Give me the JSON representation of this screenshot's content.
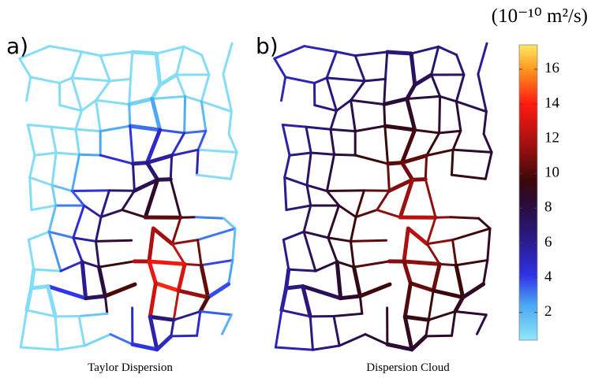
{
  "panels": [
    {
      "label": "a)",
      "caption": "Taylor Dispersion"
    },
    {
      "label": "b)",
      "caption": "Dispersion Cloud"
    }
  ],
  "colorbar": {
    "unit": "(10⁻¹⁰ m²/s)",
    "lim": [
      0.4,
      17.4
    ],
    "ticks": [
      2,
      4,
      6,
      8,
      10,
      12,
      14,
      16
    ]
  }
}
